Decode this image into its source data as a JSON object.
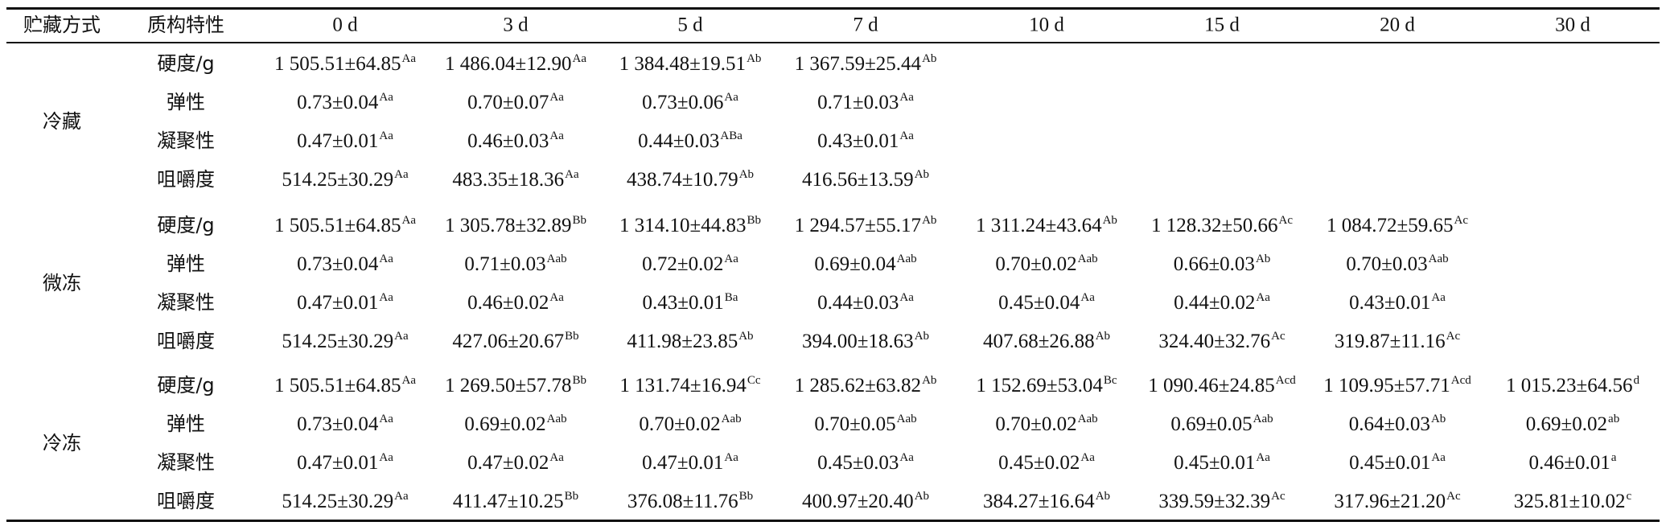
{
  "table": {
    "header": [
      "贮藏方式",
      "质构特性",
      "0 d",
      "3 d",
      "5 d",
      "7 d",
      "10 d",
      "15 d",
      "20 d",
      "30 d"
    ],
    "groups": [
      {
        "name": "冷藏",
        "rows": [
          {
            "property": "硬度/g",
            "cells": [
              {
                "value": "1 505.51±64.85",
                "sup": "Aa"
              },
              {
                "value": "1 486.04±12.90",
                "sup": "Aa"
              },
              {
                "value": "1 384.48±19.51",
                "sup": "Ab"
              },
              {
                "value": "1 367.59±25.44",
                "sup": "Ab"
              }
            ]
          },
          {
            "property": "弹性",
            "cells": [
              {
                "value": "0.73±0.04",
                "sup": "Aa"
              },
              {
                "value": "0.70±0.07",
                "sup": "Aa"
              },
              {
                "value": "0.73±0.06",
                "sup": "Aa"
              },
              {
                "value": "0.71±0.03",
                "sup": "Aa"
              }
            ]
          },
          {
            "property": "凝聚性",
            "cells": [
              {
                "value": "0.47±0.01",
                "sup": "Aa"
              },
              {
                "value": "0.46±0.03",
                "sup": "Aa"
              },
              {
                "value": "0.44±0.03",
                "sup": "ABa"
              },
              {
                "value": "0.43±0.01",
                "sup": "Aa"
              }
            ]
          },
          {
            "property": "咀嚼度",
            "cells": [
              {
                "value": "514.25±30.29",
                "sup": "Aa"
              },
              {
                "value": "483.35±18.36",
                "sup": "Aa"
              },
              {
                "value": "438.74±10.79",
                "sup": "Ab"
              },
              {
                "value": "416.56±13.59",
                "sup": "Ab"
              }
            ]
          }
        ]
      },
      {
        "name": "微冻",
        "rows": [
          {
            "property": "硬度/g",
            "cells": [
              {
                "value": "1 505.51±64.85",
                "sup": "Aa"
              },
              {
                "value": "1 305.78±32.89",
                "sup": "Bb"
              },
              {
                "value": "1 314.10±44.83",
                "sup": "Bb"
              },
              {
                "value": "1 294.57±55.17",
                "sup": "Ab"
              },
              {
                "value": "1 311.24±43.64",
                "sup": "Ab"
              },
              {
                "value": "1 128.32±50.66",
                "sup": "Ac"
              },
              {
                "value": "1 084.72±59.65",
                "sup": "Ac"
              }
            ]
          },
          {
            "property": "弹性",
            "cells": [
              {
                "value": "0.73±0.04",
                "sup": "Aa"
              },
              {
                "value": "0.71±0.03",
                "sup": "Aab"
              },
              {
                "value": "0.72±0.02",
                "sup": "Aa"
              },
              {
                "value": "0.69±0.04",
                "sup": "Aab"
              },
              {
                "value": "0.70±0.02",
                "sup": "Aab"
              },
              {
                "value": "0.66±0.03",
                "sup": "Ab"
              },
              {
                "value": "0.70±0.03",
                "sup": "Aab"
              }
            ]
          },
          {
            "property": "凝聚性",
            "cells": [
              {
                "value": "0.47±0.01",
                "sup": "Aa"
              },
              {
                "value": "0.46±0.02",
                "sup": "Aa"
              },
              {
                "value": "0.43±0.01",
                "sup": "Ba"
              },
              {
                "value": "0.44±0.03",
                "sup": "Aa"
              },
              {
                "value": "0.45±0.04",
                "sup": "Aa"
              },
              {
                "value": "0.44±0.02",
                "sup": "Aa"
              },
              {
                "value": "0.43±0.01",
                "sup": "Aa"
              }
            ]
          },
          {
            "property": "咀嚼度",
            "cells": [
              {
                "value": "514.25±30.29",
                "sup": "Aa"
              },
              {
                "value": "427.06±20.67",
                "sup": "Bb"
              },
              {
                "value": "411.98±23.85",
                "sup": "Ab"
              },
              {
                "value": "394.00±18.63",
                "sup": "Ab"
              },
              {
                "value": "407.68±26.88",
                "sup": "Ab"
              },
              {
                "value": "324.40±32.76",
                "sup": "Ac"
              },
              {
                "value": "319.87±11.16",
                "sup": "Ac"
              }
            ]
          }
        ]
      },
      {
        "name": "冷冻",
        "rows": [
          {
            "property": "硬度/g",
            "cells": [
              {
                "value": "1 505.51±64.85",
                "sup": "Aa"
              },
              {
                "value": "1 269.50±57.78",
                "sup": "Bb"
              },
              {
                "value": "1 131.74±16.94",
                "sup": "Cc"
              },
              {
                "value": "1 285.62±63.82",
                "sup": "Ab"
              },
              {
                "value": "1 152.69±53.04",
                "sup": "Bc"
              },
              {
                "value": "1 090.46±24.85",
                "sup": "Acd"
              },
              {
                "value": "1 109.95±57.71",
                "sup": "Acd"
              },
              {
                "value": "1 015.23±64.56",
                "sup": "d"
              }
            ]
          },
          {
            "property": "弹性",
            "cells": [
              {
                "value": "0.73±0.04",
                "sup": "Aa"
              },
              {
                "value": "0.69±0.02",
                "sup": "Aab"
              },
              {
                "value": "0.70±0.02",
                "sup": "Aab"
              },
              {
                "value": "0.70±0.05",
                "sup": "Aab"
              },
              {
                "value": "0.70±0.02",
                "sup": "Aab"
              },
              {
                "value": "0.69±0.05",
                "sup": "Aab"
              },
              {
                "value": "0.64±0.03",
                "sup": "Ab"
              },
              {
                "value": "0.69±0.02",
                "sup": "ab"
              }
            ]
          },
          {
            "property": "凝聚性",
            "cells": [
              {
                "value": "0.47±0.01",
                "sup": "Aa"
              },
              {
                "value": "0.47±0.02",
                "sup": "Aa"
              },
              {
                "value": "0.47±0.01",
                "sup": "Aa"
              },
              {
                "value": "0.45±0.03",
                "sup": "Aa"
              },
              {
                "value": "0.45±0.02",
                "sup": "Aa"
              },
              {
                "value": "0.45±0.01",
                "sup": "Aa"
              },
              {
                "value": "0.45±0.01",
                "sup": "Aa"
              },
              {
                "value": "0.46±0.01",
                "sup": "a"
              }
            ]
          },
          {
            "property": "咀嚼度",
            "cells": [
              {
                "value": "514.25±30.29",
                "sup": "Aa"
              },
              {
                "value": "411.47±10.25",
                "sup": "Bb"
              },
              {
                "value": "376.08±11.76",
                "sup": "Bb"
              },
              {
                "value": "400.97±20.40",
                "sup": "Ab"
              },
              {
                "value": "384.27±16.64",
                "sup": "Ab"
              },
              {
                "value": "339.59±32.39",
                "sup": "Ac"
              },
              {
                "value": "317.96±21.20",
                "sup": "Ac"
              },
              {
                "value": "325.81±10.02",
                "sup": "c"
              }
            ]
          }
        ]
      }
    ]
  }
}
